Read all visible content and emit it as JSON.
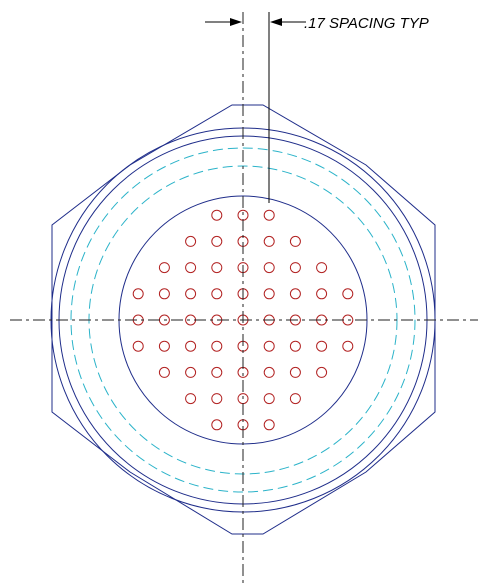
{
  "annotation": {
    "spacing_note": ".17 SPACING TYP"
  },
  "colors": {
    "outline": "#1f2d8a",
    "hidden_line": "#2bb3c9",
    "pin_hole": "#b22222",
    "centerline": "#222222",
    "dimension": "#000000",
    "background": "#ffffff"
  },
  "pin_pattern": {
    "rows": [
      {
        "count": 3
      },
      {
        "count": 5
      },
      {
        "count": 7
      },
      {
        "count": 9
      },
      {
        "count": 9
      },
      {
        "count": 9
      },
      {
        "count": 7
      },
      {
        "count": 5
      },
      {
        "count": 3
      }
    ]
  }
}
